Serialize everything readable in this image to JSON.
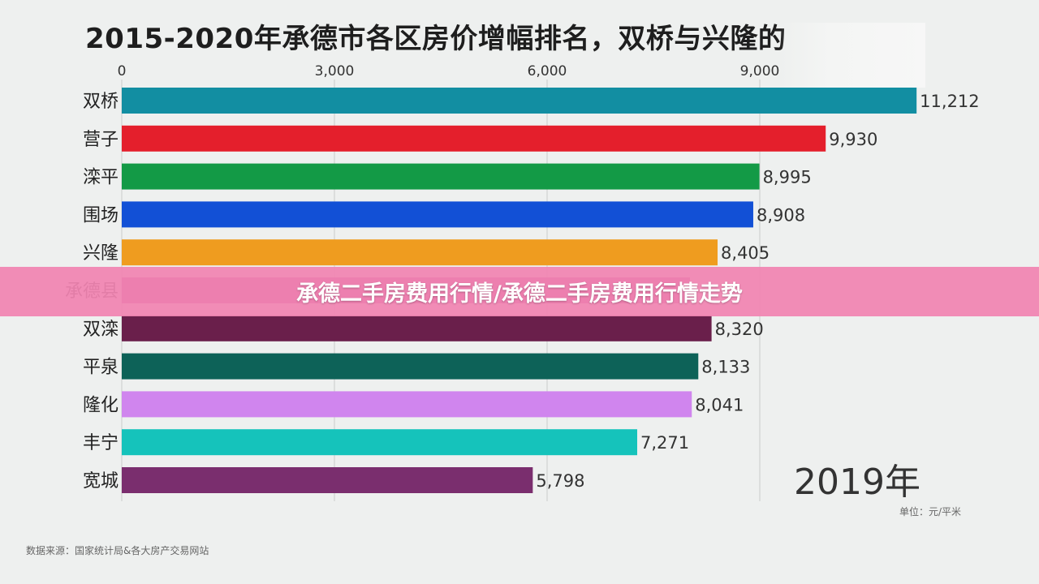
{
  "chart_data": {
    "type": "bar",
    "orientation": "horizontal",
    "title": "2015-2020年承德市各区房价增幅排名，双桥与兴隆的",
    "categories": [
      "双桥",
      "营子",
      "滦平",
      "围场",
      "兴隆",
      "承德县",
      "双滦",
      "平泉",
      "隆化",
      "丰宁",
      "宽城"
    ],
    "values": [
      11212,
      9930,
      8995,
      8908,
      8405,
      null,
      8320,
      8133,
      8041,
      7271,
      5798
    ],
    "value_labels": [
      "11,212",
      "9,930",
      "8,995",
      "8,908",
      "8,405",
      "",
      "8,320",
      "8,133",
      "8,041",
      "7,271",
      "5,798"
    ],
    "colors": [
      "#128ea2",
      "#e41f2c",
      "#139a46",
      "#1250d6",
      "#ef9c1f",
      "#b13f8c",
      "#6a1f4b",
      "#0d6258",
      "#d085ee",
      "#15c3bb",
      "#7a2e6e"
    ],
    "xaxis_ticks": [
      0,
      3000,
      6000,
      9000
    ],
    "xaxis_tick_labels": [
      "0",
      "3,000",
      "6,000",
      "9,000"
    ],
    "xlim": [
      0,
      12000
    ],
    "grid": true,
    "year": "2019年",
    "unit": "单位：元/平米",
    "source": "数据来源：国家统计局&各大房产交易网站"
  },
  "banner": {
    "text": "承德二手房费用行情/承德二手房费用行情走势"
  }
}
